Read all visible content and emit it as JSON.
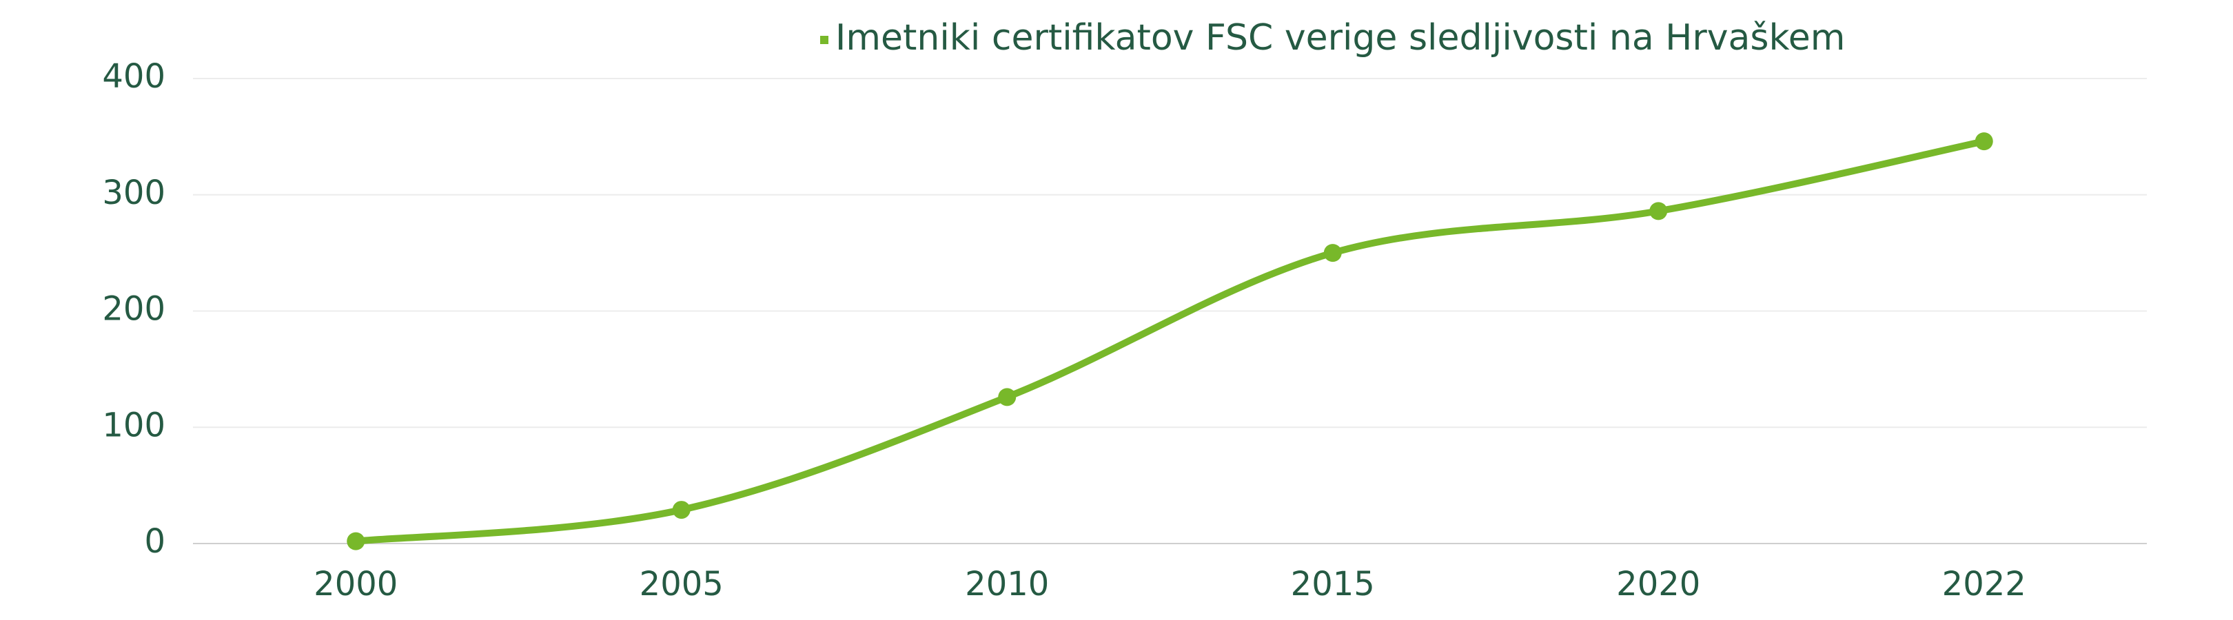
{
  "chart_data": {
    "type": "line",
    "categories": [
      "2000",
      "2005",
      "2010",
      "2015",
      "2020",
      "2022"
    ],
    "series": [
      {
        "name": "Imetniki certifikatov FSC verige sledljivosti na Hrvaškem",
        "color": "#78b82a",
        "values": [
          2,
          29,
          126,
          250,
          286,
          346
        ]
      }
    ],
    "ylim": [
      0,
      400
    ],
    "yticks": [
      0,
      100,
      200,
      300,
      400
    ],
    "grid": true,
    "smooth": true,
    "legend": "top"
  }
}
